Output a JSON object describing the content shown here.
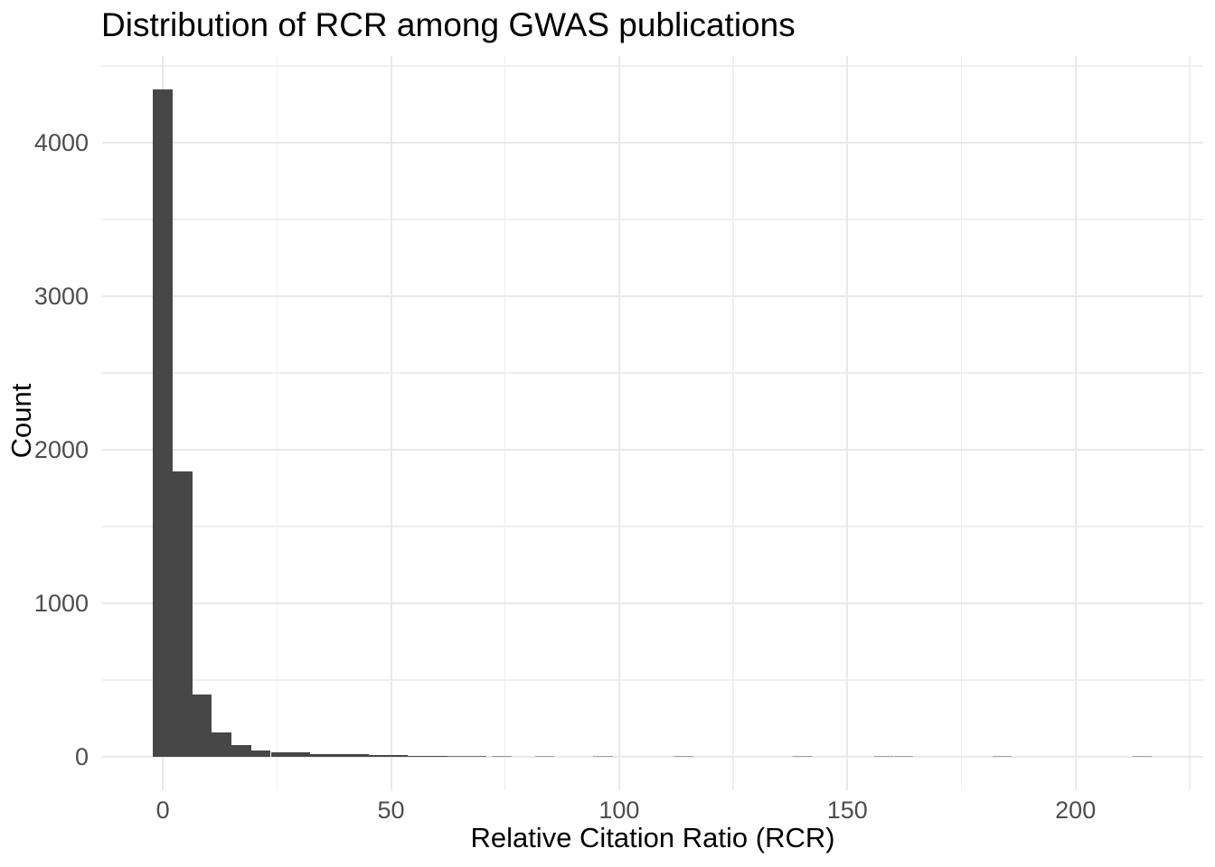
{
  "chart_data": {
    "type": "bar",
    "subtype": "histogram",
    "title": "Distribution of RCR among GWAS publications",
    "xlabel": "Relative Citation Ratio (RCR)",
    "ylabel": "Count",
    "grid": true,
    "legend_position": "none",
    "background_color": "#ffffff",
    "bar_color": "#474747",
    "grid_major_color": "#e9e9e9",
    "grid_minor_color": "#efefef",
    "tick_label_color": "#4d4d4d",
    "title_color": "#000000",
    "binwidth": 4.3,
    "bins": {
      "centers": [
        0,
        4.3,
        8.6,
        12.9,
        17.2,
        21.5,
        25.8,
        30.1,
        34.4,
        38.7,
        43.0,
        47.3,
        51.6,
        55.9,
        60.2,
        64.5,
        68.8,
        74.3,
        83.7,
        96.5,
        114.1,
        140.3,
        158.0,
        162.3,
        183.9,
        214.6
      ],
      "counts": [
        4345,
        1860,
        405,
        160,
        75,
        41,
        31,
        28,
        19,
        16,
        16,
        10,
        9,
        6,
        6,
        5,
        5,
        2,
        1,
        1,
        1,
        1,
        1,
        1,
        1,
        1
      ]
    },
    "x_axis": {
      "ticks": [
        0,
        50,
        100,
        150,
        200
      ],
      "tick_labels": [
        "0",
        "50",
        "100",
        "150",
        "200"
      ],
      "minor_ticks": [
        25,
        75,
        125,
        175,
        225
      ],
      "range": [
        -13.3,
        228.0
      ]
    },
    "y_axis": {
      "ticks": [
        0,
        1000,
        2000,
        3000,
        4000
      ],
      "tick_labels": [
        "0",
        "1000",
        "2000",
        "3000",
        "4000"
      ],
      "minor_ticks": [
        500,
        1500,
        2500,
        3500,
        4500
      ],
      "range": [
        -218,
        4565
      ]
    }
  }
}
